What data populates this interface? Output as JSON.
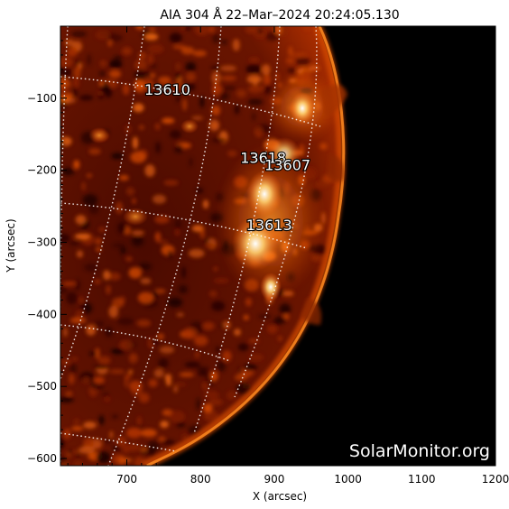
{
  "title": "AIA 304 Å 22–Mar–2024  20:24:05.130",
  "axes": {
    "xlabel": "X (arcsec)",
    "ylabel": "Y (arcsec)",
    "x_ticks": [
      700,
      800,
      900,
      1000,
      1100,
      1200
    ],
    "y_ticks": [
      -100,
      -200,
      -300,
      -400,
      -500,
      -600
    ],
    "x_tick_labels": [
      "700",
      "800",
      "900",
      "1000",
      "1100",
      "1200"
    ],
    "y_tick_labels": [
      "−100",
      "−200",
      "−300",
      "−400",
      "−500",
      "−600"
    ],
    "xlim": [
      610,
      1200
    ],
    "ylim": [
      -610,
      0
    ]
  },
  "active_regions": [
    {
      "id": "13610",
      "x": 755,
      "y": -95
    },
    {
      "id": "13618",
      "x": 885,
      "y": -190
    },
    {
      "id": "13607",
      "x": 918,
      "y": -200
    },
    {
      "id": "13613",
      "x": 893,
      "y": -283
    }
  ],
  "watermark": "SolarMonitor.org",
  "colors": {
    "space": "#000000",
    "disk_dark": "#3a0600",
    "disk_mid": "#a32a00",
    "disk_bright": "#ff8a1a",
    "flare": "#fff4d0",
    "grid": "#ffffff"
  }
}
